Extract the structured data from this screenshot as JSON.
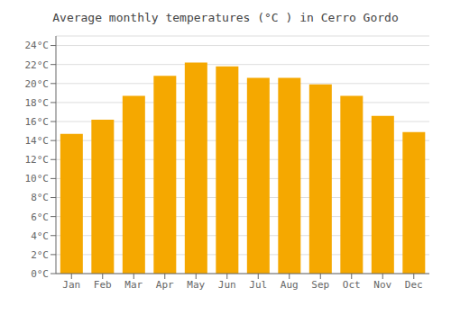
{
  "chart_data": {
    "type": "bar",
    "title": "Average monthly temperatures (°C ) in Cerro Gordo",
    "categories": [
      "Jan",
      "Feb",
      "Mar",
      "Apr",
      "May",
      "Jun",
      "Jul",
      "Aug",
      "Sep",
      "Oct",
      "Nov",
      "Dec"
    ],
    "values": [
      14.7,
      16.2,
      18.7,
      20.8,
      22.2,
      21.8,
      20.6,
      20.6,
      19.9,
      18.7,
      16.6,
      14.9
    ],
    "color": "#F5A800",
    "ylim": [
      0,
      25
    ],
    "yticks": [
      {
        "value": 0,
        "label": "0°C"
      },
      {
        "value": 2,
        "label": "2°C"
      },
      {
        "value": 4,
        "label": "4°C"
      },
      {
        "value": 6,
        "label": "6°C"
      },
      {
        "value": 8,
        "label": "8°C"
      },
      {
        "value": 10,
        "label": "10°C"
      },
      {
        "value": 12,
        "label": "12°C"
      },
      {
        "value": 14,
        "label": "14°C"
      },
      {
        "value": 16,
        "label": "16°C"
      },
      {
        "value": 18,
        "label": "18°C"
      },
      {
        "value": 20,
        "label": "20°C"
      },
      {
        "value": 22,
        "label": "22°C"
      },
      {
        "value": 24,
        "label": "24°C"
      }
    ],
    "grid": true
  }
}
